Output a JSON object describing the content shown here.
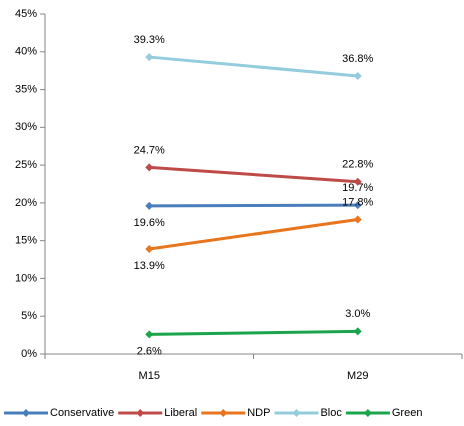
{
  "chart_data": {
    "type": "line",
    "categories": [
      "M15",
      "M29"
    ],
    "series": [
      {
        "name": "Conservative",
        "color": "#4a7ebb",
        "values": [
          19.6,
          19.7
        ],
        "value_labels": [
          "19.6%",
          "19.7%"
        ]
      },
      {
        "name": "Liberal",
        "color": "#be4b48",
        "values": [
          24.7,
          22.8
        ],
        "value_labels": [
          "24.7%",
          "22.8%"
        ]
      },
      {
        "name": "NDP",
        "color": "#e8761e",
        "values": [
          13.9,
          17.8
        ],
        "value_labels": [
          "13.9%",
          "17.8%"
        ]
      },
      {
        "name": "Bloc",
        "color": "#93cddd",
        "values": [
          39.3,
          36.8
        ],
        "value_labels": [
          "39.3%",
          "36.8%"
        ]
      },
      {
        "name": "Green",
        "color": "#1aa54b",
        "values": [
          2.6,
          3.0
        ],
        "value_labels": [
          "2.6%",
          "3.0%"
        ]
      }
    ],
    "ylim": [
      0,
      45
    ],
    "yticks": [
      {
        "value": 0,
        "label": "0%"
      },
      {
        "value": 5,
        "label": "5%"
      },
      {
        "value": 10,
        "label": "10%"
      },
      {
        "value": 15,
        "label": "15%"
      },
      {
        "value": 20,
        "label": "20%"
      },
      {
        "value": 25,
        "label": "25%"
      },
      {
        "value": 30,
        "label": "30%"
      },
      {
        "value": 35,
        "label": "35%"
      },
      {
        "value": 40,
        "label": "40%"
      },
      {
        "value": 45,
        "label": "45%"
      }
    ],
    "grid": false,
    "legend": "bottom"
  }
}
